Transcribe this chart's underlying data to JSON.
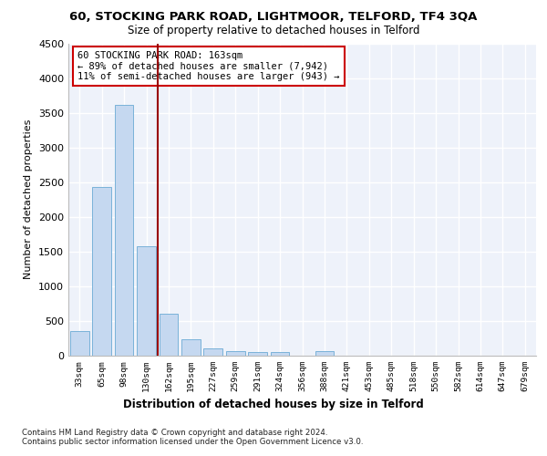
{
  "title": "60, STOCKING PARK ROAD, LIGHTMOOR, TELFORD, TF4 3QA",
  "subtitle": "Size of property relative to detached houses in Telford",
  "xlabel": "Distribution of detached houses by size in Telford",
  "ylabel": "Number of detached properties",
  "bar_color": "#c5d8f0",
  "bar_edge_color": "#6aaad4",
  "categories": [
    "33sqm",
    "65sqm",
    "98sqm",
    "130sqm",
    "162sqm",
    "195sqm",
    "227sqm",
    "259sqm",
    "291sqm",
    "324sqm",
    "356sqm",
    "388sqm",
    "421sqm",
    "453sqm",
    "485sqm",
    "518sqm",
    "550sqm",
    "582sqm",
    "614sqm",
    "647sqm",
    "679sqm"
  ],
  "values": [
    350,
    2430,
    3610,
    1580,
    600,
    230,
    110,
    65,
    50,
    55,
    0,
    65,
    0,
    0,
    0,
    0,
    0,
    0,
    0,
    0,
    0
  ],
  "vline_x": 3.5,
  "vline_color": "#990000",
  "annotation_text": "60 STOCKING PARK ROAD: 163sqm\n← 89% of detached houses are smaller (7,942)\n11% of semi-detached houses are larger (943) →",
  "annotation_box_color": "#ffffff",
  "annotation_box_edge": "#cc0000",
  "ylim": [
    0,
    4500
  ],
  "yticks": [
    0,
    500,
    1000,
    1500,
    2000,
    2500,
    3000,
    3500,
    4000,
    4500
  ],
  "bg_color": "#eef2fa",
  "grid_color": "#ffffff",
  "footer": "Contains HM Land Registry data © Crown copyright and database right 2024.\nContains public sector information licensed under the Open Government Licence v3.0.",
  "fig_bg": "#ffffff"
}
